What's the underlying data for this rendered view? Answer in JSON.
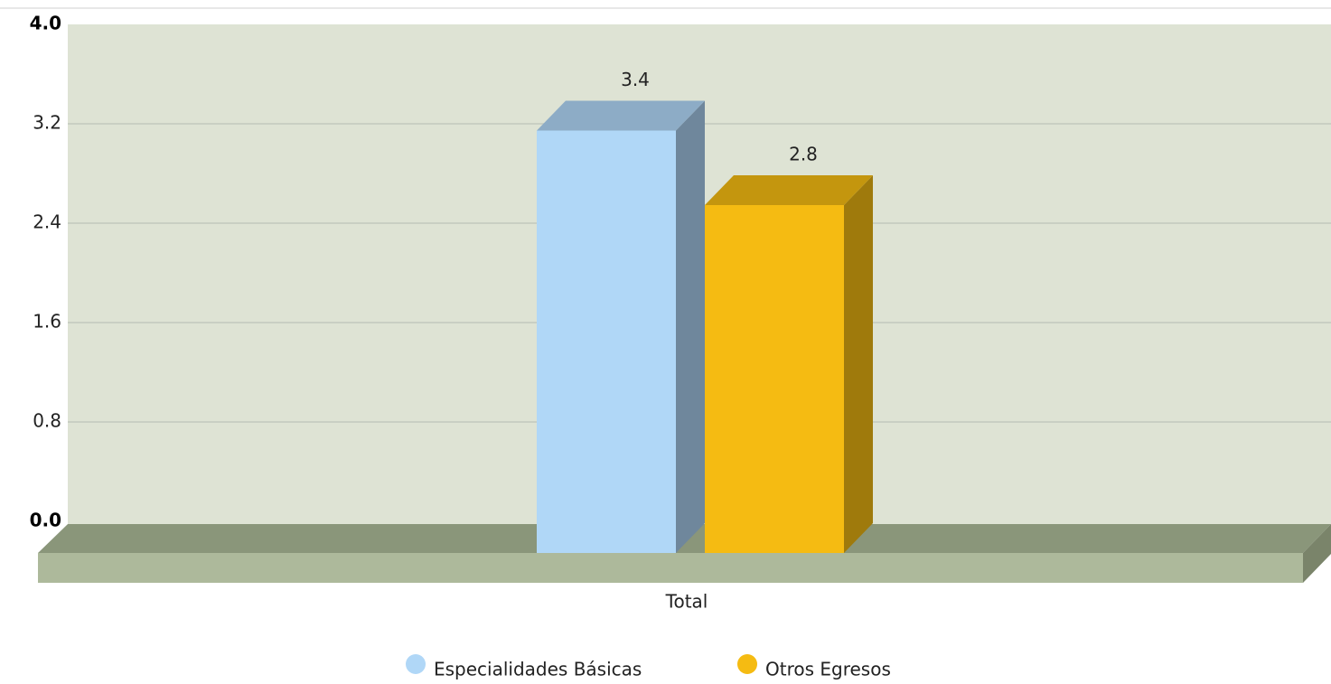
{
  "chart_data": {
    "type": "bar3d",
    "categories": [
      "Total"
    ],
    "series": [
      {
        "name": "Especialidades Básicas",
        "color": "#b0d7f7",
        "values": [
          3.4
        ]
      },
      {
        "name": "Otros Egresos",
        "color": "#f5bb12",
        "values": [
          2.8
        ]
      }
    ],
    "ylim": [
      0,
      4
    ],
    "yticks": [
      {
        "value": 0,
        "label": "0.0"
      },
      0.8,
      1.6,
      2.4,
      3.2,
      {
        "value": 4,
        "label": "4.0"
      }
    ],
    "grid": true,
    "legend": "bottom"
  }
}
